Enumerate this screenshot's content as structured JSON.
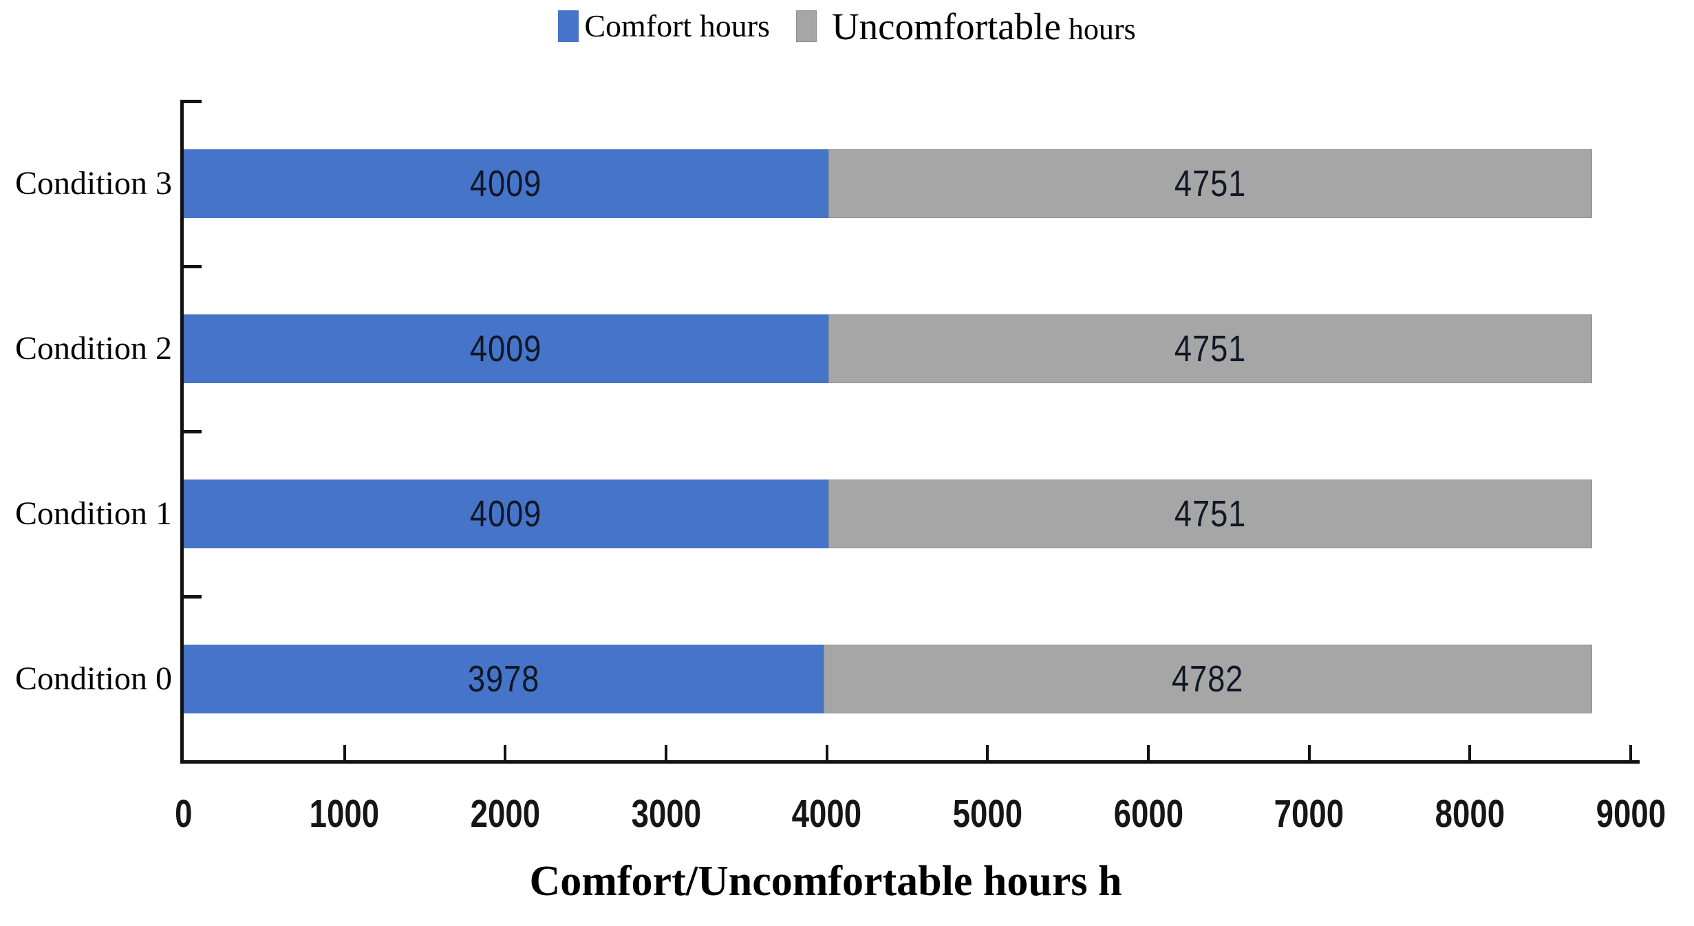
{
  "chart_data": {
    "type": "bar",
    "orientation": "horizontal",
    "stacked": true,
    "title": "",
    "xlabel": "Comfort/Uncomfortable hours h",
    "ylabel": "",
    "xlim": [
      0,
      9000
    ],
    "x_ticks": [
      0,
      1000,
      2000,
      3000,
      4000,
      5000,
      6000,
      7000,
      8000,
      9000
    ],
    "grid": false,
    "legend_position": "top-center",
    "bar_value_labels": true,
    "categories": [
      "Condition 3",
      "Condition 2",
      "Condition 1",
      "Condition 0"
    ],
    "series": [
      {
        "name": "Comfort hours",
        "color": "#4574C9",
        "values": [
          4009,
          4009,
          4009,
          3978
        ]
      },
      {
        "name": "Uncomfortable hours",
        "color": "#A6A6A6",
        "values": [
          4751,
          4751,
          4751,
          4782
        ]
      }
    ]
  },
  "legend": {
    "comfort_label": "Comfort hours",
    "uncomfortable_label_main": "Uncomfortable",
    "uncomfortable_label_small": "hours"
  },
  "colors": {
    "comfort_fill": "#4574C9",
    "uncomfortable_fill": "#A6A6A6",
    "uncomfortable_border": "#8F8F8F",
    "axis": "#121212",
    "value_text": "#101826"
  }
}
